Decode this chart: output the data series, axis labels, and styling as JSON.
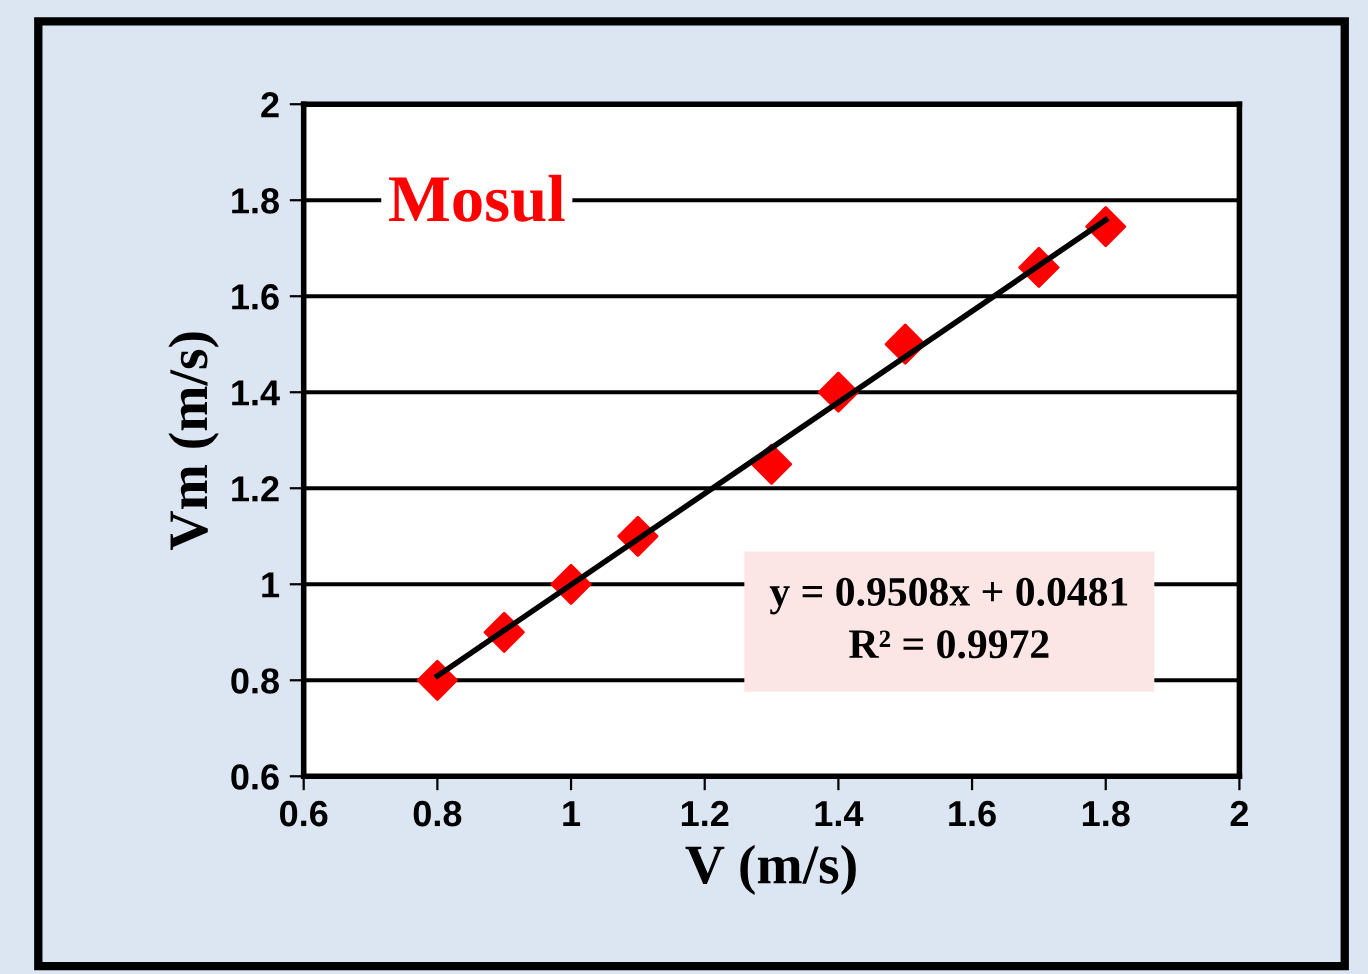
{
  "chart_data": {
    "type": "scatter",
    "xlabel": "V (m/s)",
    "ylabel": "Vm (m/s)",
    "series": [
      {
        "color": "#ff0000",
        "marker": "diamond",
        "x": [
          0.8,
          0.9,
          1.0,
          1.1,
          1.3,
          1.4,
          1.5,
          1.7,
          1.8
        ],
        "values": [
          0.8,
          0.9,
          1.0,
          1.1,
          1.25,
          1.4,
          1.5,
          1.66,
          1.745
        ]
      },
      {
        "type": "line",
        "color": "#000000",
        "marker": "none",
        "line_style": "solid",
        "x": [
          0.8,
          1.8
        ],
        "values": [
          0.809,
          1.759
        ]
      }
    ],
    "xlim": [
      0.6,
      2
    ],
    "xticks": [
      0.6,
      0.8,
      1,
      1.2,
      1.4,
      1.6,
      1.8,
      2
    ],
    "ylim": [
      0.6,
      2
    ],
    "yticks": [
      0.6,
      0.8,
      1,
      1.2,
      1.4,
      1.6,
      1.8,
      2
    ],
    "grid": "y",
    "annotations": [
      "Mosul",
      "y = 0.9508x + 0.0481\nR² = 0.9972"
    ]
  }
}
